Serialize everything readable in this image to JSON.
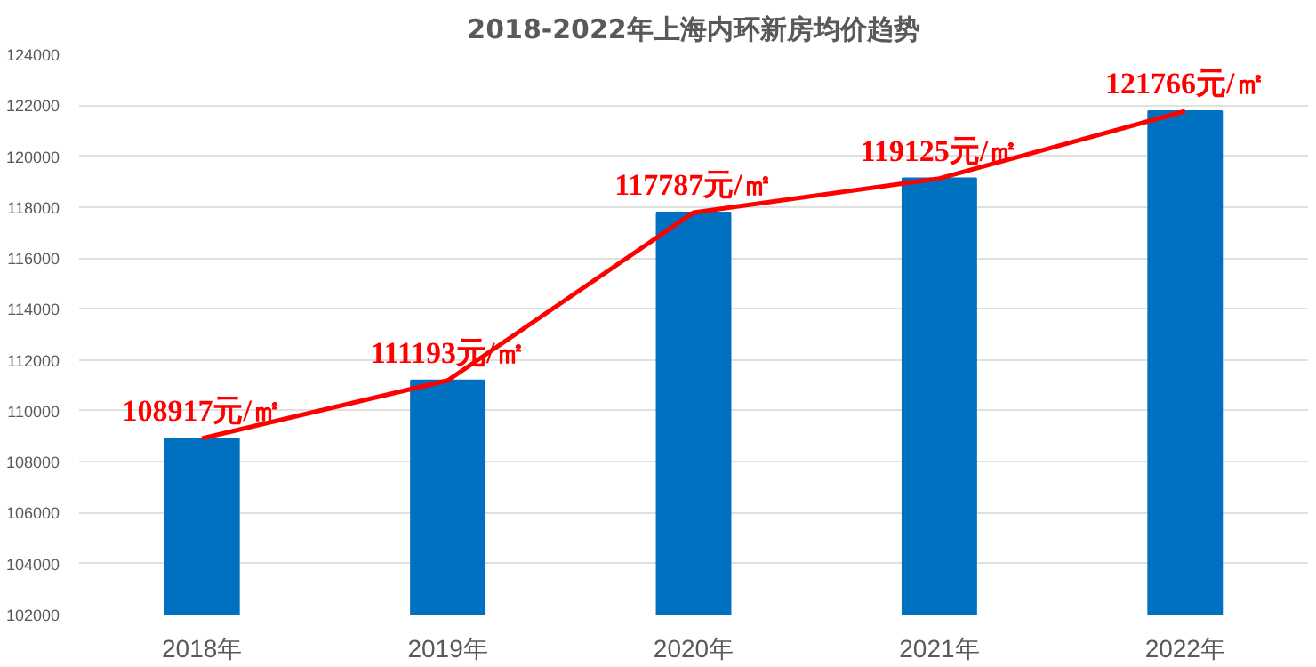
{
  "chart_data": {
    "type": "bar",
    "title": "2018-2022年上海内环新房均价趋势",
    "categories": [
      "2018年",
      "2019年",
      "2020年",
      "2021年",
      "2022年"
    ],
    "series": [
      {
        "color": "#0070c0",
        "values": [
          108917,
          111193,
          117787,
          119125,
          121766
        ]
      },
      {
        "type": "line",
        "color": "#ff0000",
        "values": [
          108917,
          111193,
          117787,
          119125,
          121766
        ],
        "value_labels": [
          "108917元/㎡",
          "111193元/㎡",
          "117787元/㎡",
          "119125元/㎡",
          "121766元/㎡"
        ]
      }
    ],
    "ylim": [
      102000,
      124000
    ],
    "yticks": [
      102000,
      104000,
      106000,
      108000,
      110000,
      112000,
      114000,
      116000,
      118000,
      120000,
      122000,
      124000
    ],
    "grid": "y",
    "marker": "none",
    "line_style": "solid"
  }
}
